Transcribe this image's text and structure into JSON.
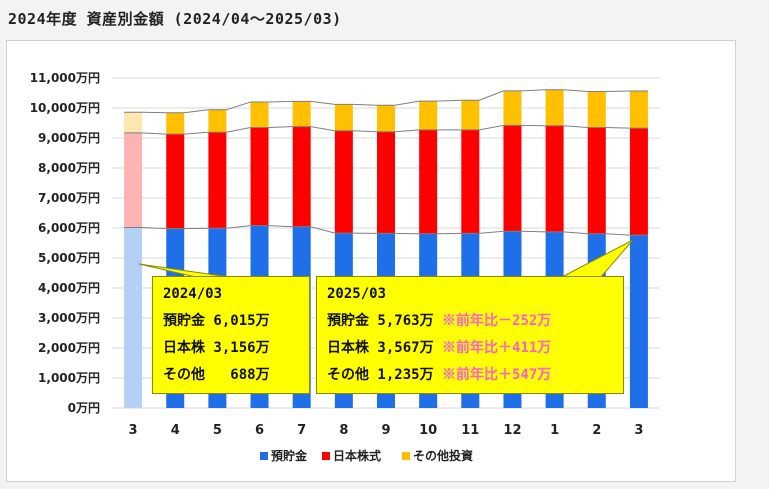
{
  "title": "2024年度 資産別金額 (2024/04～2025/03)",
  "colors": {
    "deposit": "#1f6fe8",
    "stock": "#ff0000",
    "other": "#ffc000",
    "deposit_light": "#b4d0f7",
    "stock_light": "#ffb3b3",
    "other_light": "#ffe7b0",
    "callout_bg": "#ffff00",
    "diff": "#ff5fd0"
  },
  "chart_data": {
    "type": "bar",
    "stacked": true,
    "categories": [
      "3",
      "4",
      "5",
      "6",
      "7",
      "8",
      "9",
      "10",
      "11",
      "12",
      "1",
      "2",
      "3"
    ],
    "series": [
      {
        "name": "預貯金",
        "values": [
          6015,
          5980,
          5990,
          6080,
          6040,
          5830,
          5820,
          5810,
          5820,
          5890,
          5870,
          5810,
          5763
        ]
      },
      {
        "name": "日本株式",
        "values": [
          3156,
          3150,
          3200,
          3270,
          3340,
          3410,
          3390,
          3460,
          3450,
          3530,
          3540,
          3540,
          3567
        ]
      },
      {
        "name": "その他投資",
        "values": [
          688,
          710,
          750,
          850,
          840,
          880,
          880,
          960,
          990,
          1150,
          1200,
          1200,
          1235
        ]
      }
    ],
    "ylim": [
      0,
      11000
    ],
    "yticks": [
      "0万円",
      "1,000万円",
      "2,000万円",
      "3,000万円",
      "4,000万円",
      "5,000万円",
      "6,000万円",
      "7,000万円",
      "8,000万円",
      "9,000万円",
      "10,000万円",
      "11,000万円"
    ],
    "grid": true,
    "legend": "bottom",
    "annotations": [
      {
        "lines": [
          "2024/03",
          "預貯金 6,015万",
          "日本株 3,156万",
          "その他   688万"
        ]
      },
      {
        "lines": [
          "2025/03",
          "預貯金 5,763万",
          "日本株 3,567万",
          "その他 1,235万"
        ],
        "diffs": [
          "",
          "※前年比－252万",
          "※前年比＋411万",
          "※前年比＋547万"
        ]
      }
    ]
  }
}
